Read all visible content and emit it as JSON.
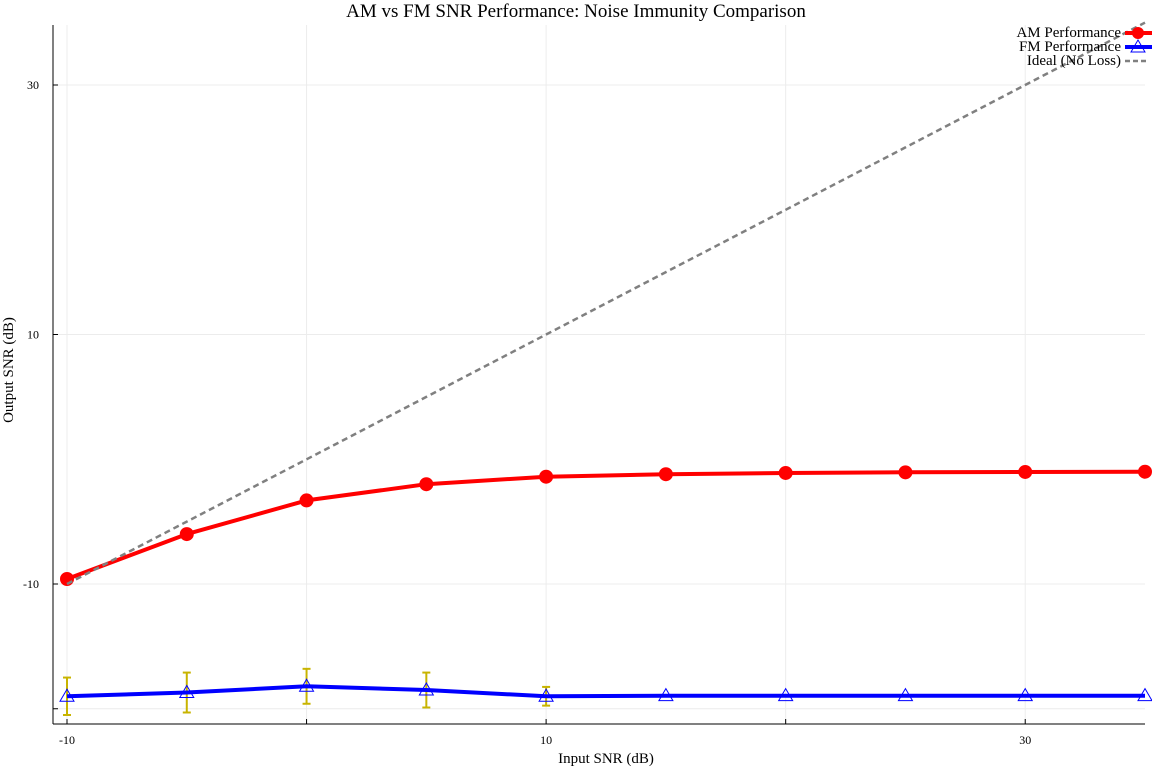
{
  "chart_data": {
    "type": "line",
    "title": "AM vs FM SNR Performance: Noise Immunity Comparison",
    "xlabel": "Input SNR (dB)",
    "ylabel": "Output SNR (dB)",
    "xlim": [
      -10,
      35
    ],
    "ylim": [
      -20,
      35
    ],
    "xticks": [
      -10,
      0,
      10,
      20,
      30
    ],
    "xtick_labels": [
      "-10",
      "",
      "10",
      "",
      "30"
    ],
    "yticks": [
      -20,
      -10,
      10,
      30
    ],
    "ytick_labels": [
      "",
      "-10",
      "10",
      "30"
    ],
    "grid": true,
    "legend_position": "top-right",
    "x": [
      -10,
      -5,
      0,
      5,
      10,
      15,
      20,
      25,
      30,
      35
    ],
    "series": [
      {
        "name": "AM Performance",
        "color": "#ff0000",
        "marker": "circle",
        "values": [
          -9.6,
          -6.0,
          -3.3,
          -2.0,
          -1.4,
          -1.2,
          -1.1,
          -1.05,
          -1.02,
          -1.0
        ]
      },
      {
        "name": "FM Performance",
        "color": "#0000ff",
        "marker": "triangle",
        "values": [
          -19.0,
          -18.7,
          -18.2,
          -18.5,
          -19.0,
          -18.95,
          -18.95,
          -18.95,
          -18.95,
          -18.95
        ],
        "errors": [
          1.5,
          1.6,
          1.4,
          1.4,
          0.75,
          0,
          0,
          0,
          0,
          0
        ],
        "error_color": "#c8b400"
      },
      {
        "name": "Ideal (No Loss)",
        "color": "#808080",
        "style": "dashed",
        "values": [
          -10,
          -5,
          0,
          5,
          10,
          15,
          20,
          25,
          30,
          35
        ]
      }
    ]
  }
}
